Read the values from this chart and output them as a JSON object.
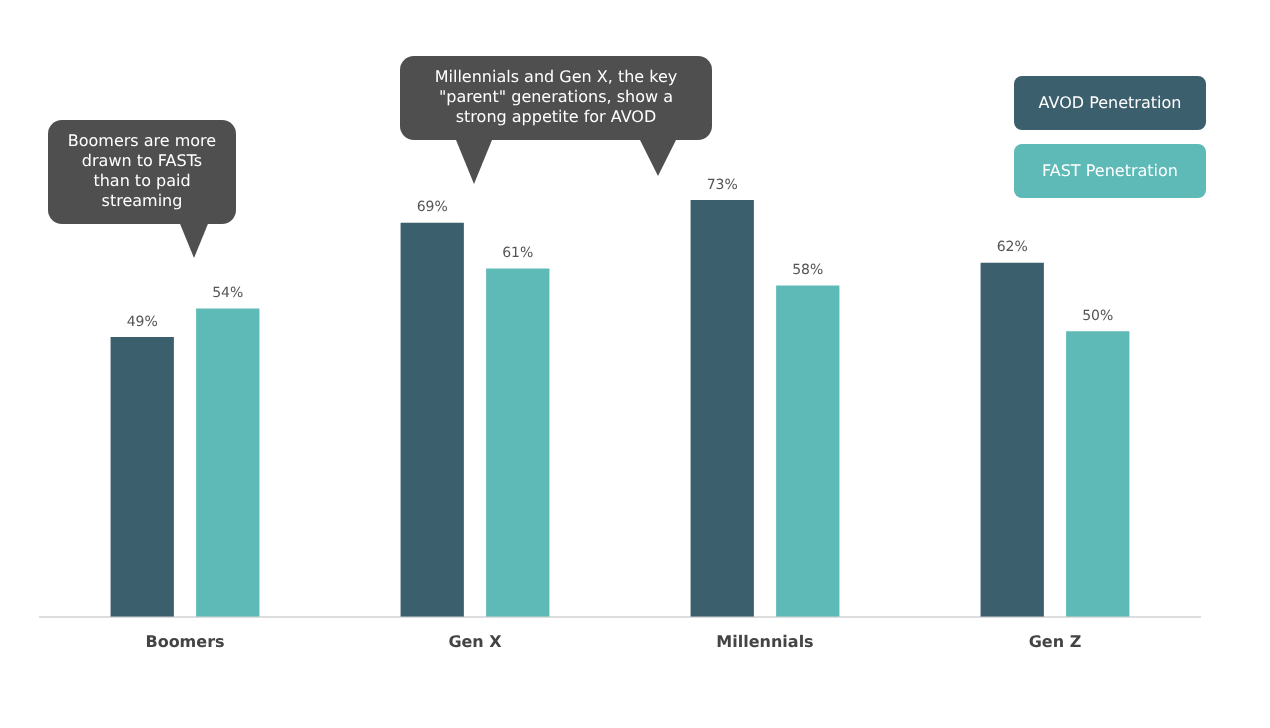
{
  "chart_data": {
    "type": "bar",
    "categories": [
      "Boomers",
      "Gen X",
      "Millennials",
      "Gen Z"
    ],
    "series": [
      {
        "name": "AVOD Penetration",
        "color": "#3b5f6c",
        "values": [
          49,
          69,
          73,
          62
        ],
        "value_labels": [
          "49%",
          "69%",
          "73%",
          "62%"
        ]
      },
      {
        "name": "FAST Penetration",
        "color": "#5dbab7",
        "values": [
          54,
          61,
          58,
          50
        ],
        "value_labels": [
          "54%",
          "61%",
          "58%",
          "50%"
        ]
      }
    ],
    "annotations": [
      "Boomers are more drawn to FASTs than to paid streaming",
      "Millennials and Gen X, the key \"parent\" generations, show a strong appetite for AVOD"
    ],
    "legend": "top right",
    "grid": false
  }
}
